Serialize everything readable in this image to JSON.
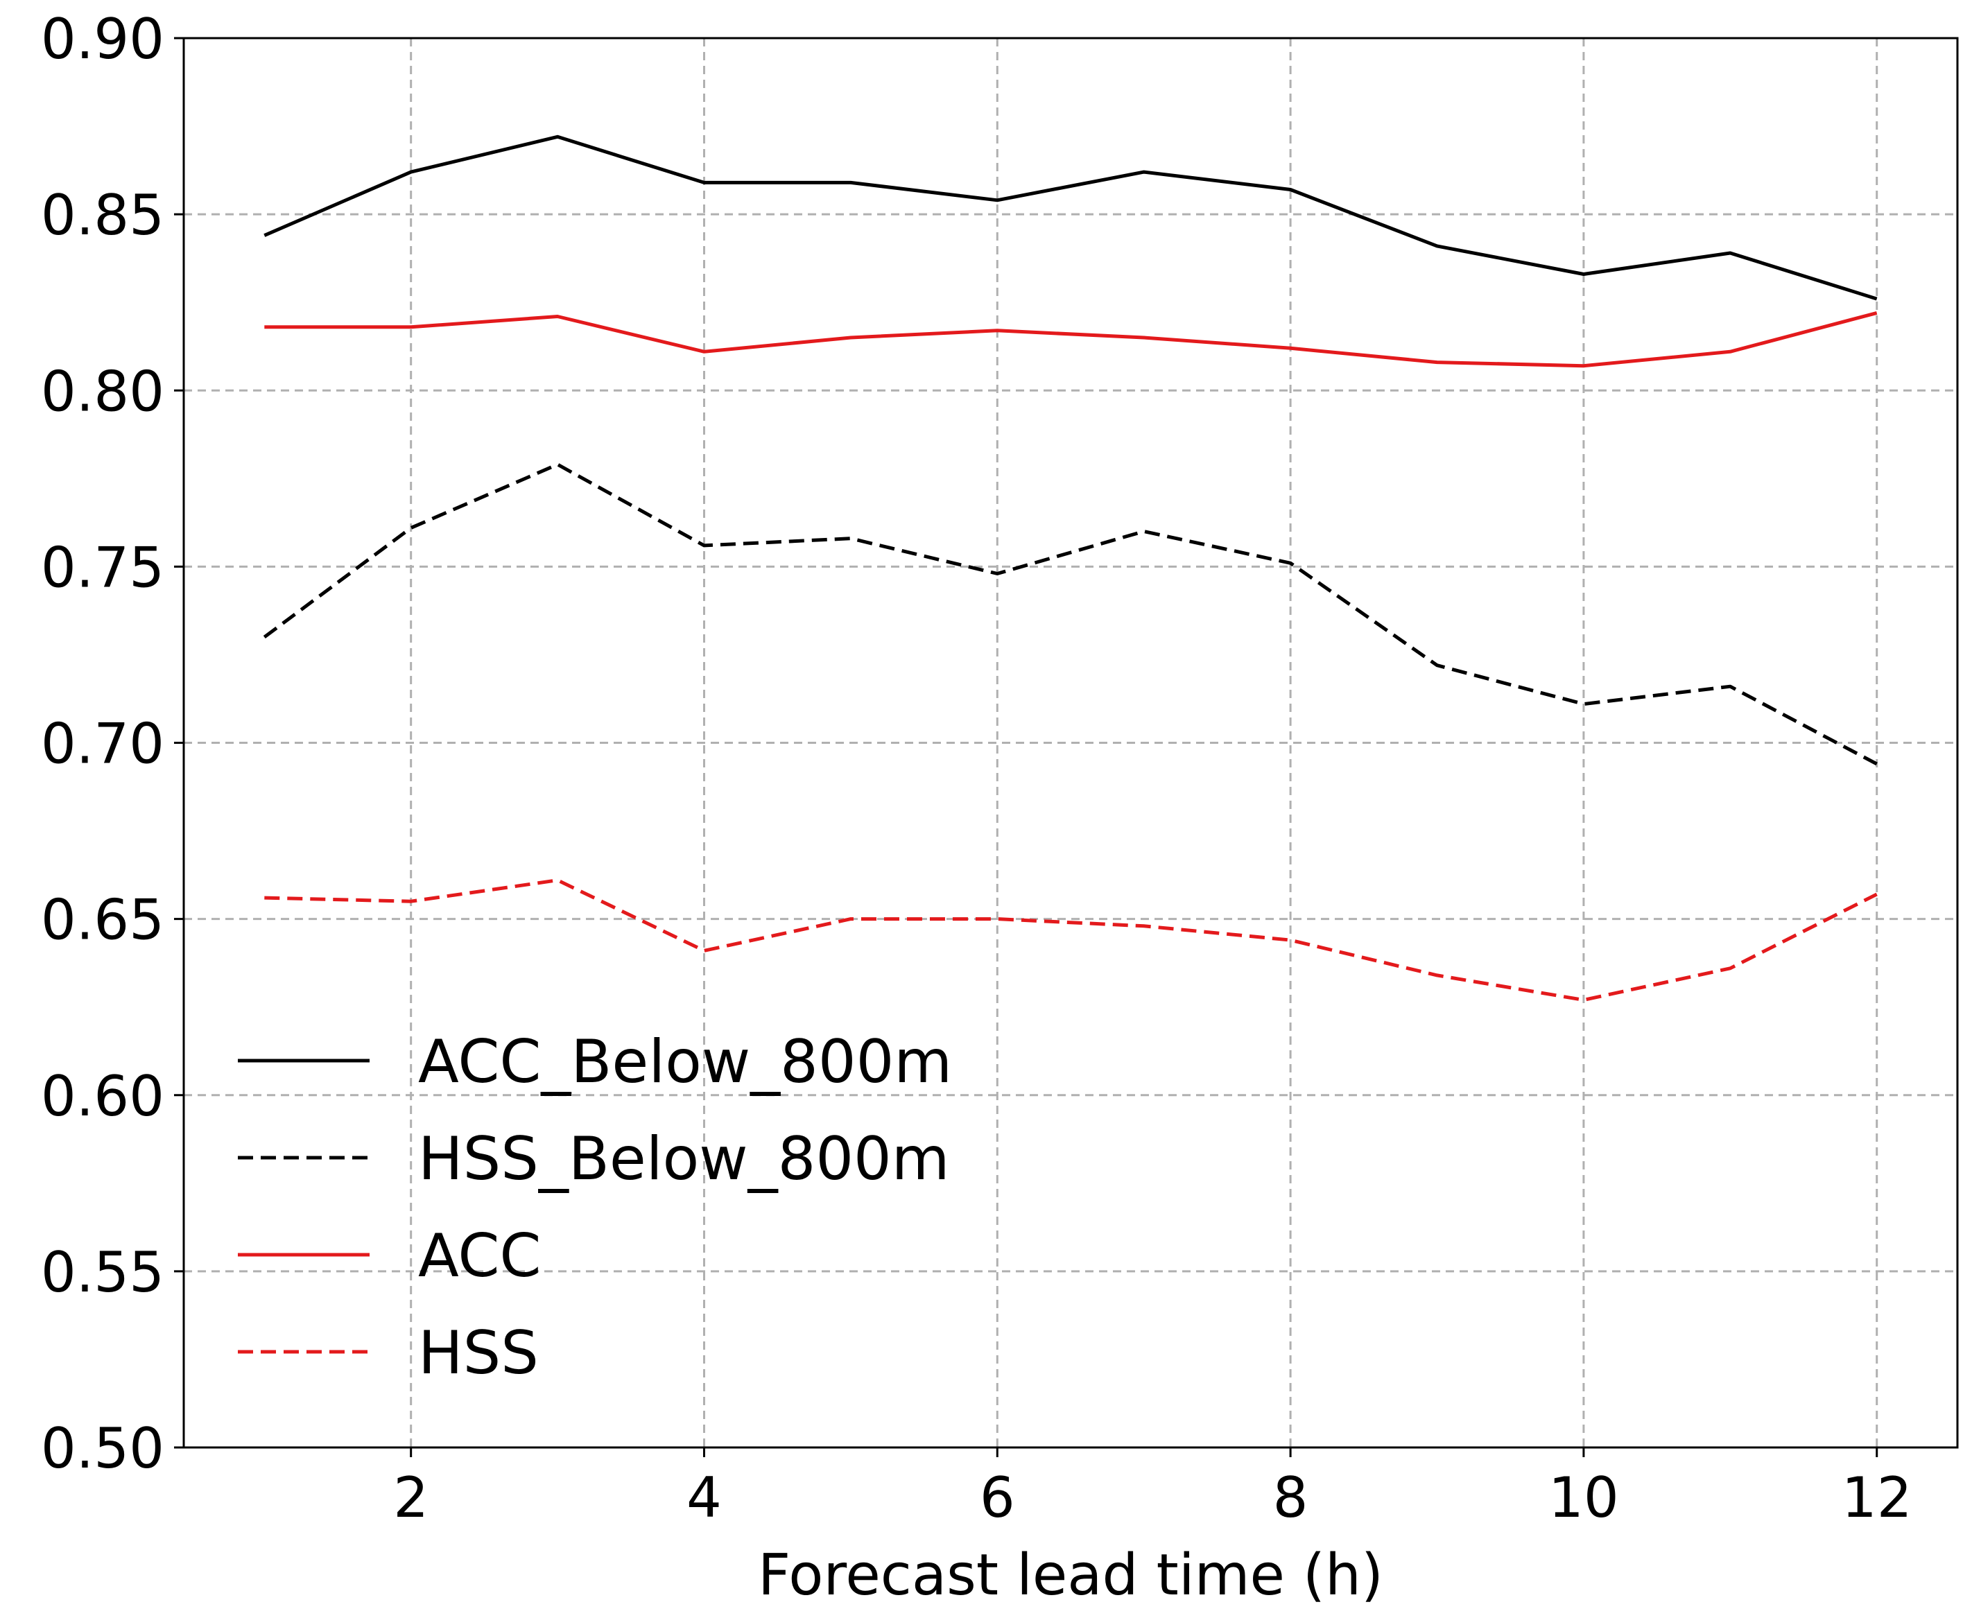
{
  "chart_data": {
    "type": "line",
    "title": "",
    "xlabel": "Forecast lead time (h)",
    "ylabel": "",
    "x": [
      1,
      2,
      3,
      4,
      5,
      6,
      7,
      8,
      9,
      10,
      11,
      12
    ],
    "xlim": [
      0.45,
      12.55
    ],
    "ylim": [
      0.5,
      0.9
    ],
    "xticks": [
      2,
      4,
      6,
      8,
      10,
      12
    ],
    "xtick_labels": [
      "2",
      "4",
      "6",
      "8",
      "10",
      "12"
    ],
    "yticks": [
      0.5,
      0.55,
      0.6,
      0.65,
      0.7,
      0.75,
      0.8,
      0.85,
      0.9
    ],
    "ytick_labels": [
      "0.50",
      "0.55",
      "0.60",
      "0.65",
      "0.70",
      "0.75",
      "0.80",
      "0.85",
      "0.90"
    ],
    "grid": true,
    "legend_position": "lower-left",
    "series": [
      {
        "name": "ACC_Below_800m",
        "color": "#000000",
        "linestyle": "solid",
        "values": [
          0.844,
          0.862,
          0.872,
          0.859,
          0.859,
          0.854,
          0.862,
          0.857,
          0.841,
          0.833,
          0.839,
          0.826
        ]
      },
      {
        "name": "HSS_Below_800m",
        "color": "#000000",
        "linestyle": "dashed",
        "values": [
          0.73,
          0.761,
          0.779,
          0.756,
          0.758,
          0.748,
          0.76,
          0.751,
          0.722,
          0.711,
          0.716,
          0.694
        ]
      },
      {
        "name": "ACC",
        "color": "#e31a1c",
        "linestyle": "solid",
        "values": [
          0.818,
          0.818,
          0.821,
          0.811,
          0.815,
          0.817,
          0.815,
          0.812,
          0.808,
          0.807,
          0.811,
          0.822
        ]
      },
      {
        "name": "HSS",
        "color": "#e31a1c",
        "linestyle": "dashed",
        "values": [
          0.656,
          0.655,
          0.661,
          0.641,
          0.65,
          0.65,
          0.648,
          0.644,
          0.634,
          0.627,
          0.636,
          0.657
        ]
      }
    ]
  }
}
